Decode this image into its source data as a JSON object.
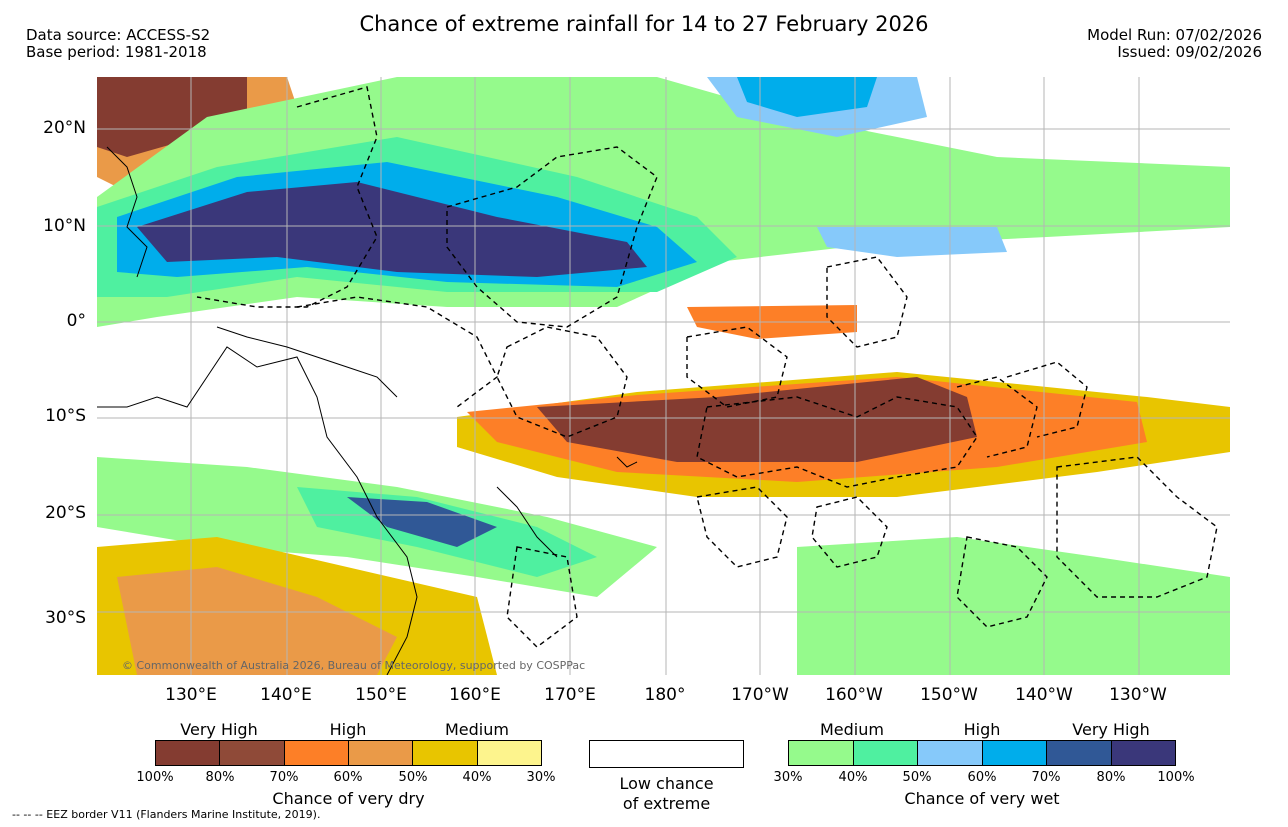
{
  "header": {
    "title": "Chance of extreme rainfall for 14 to 27 February 2026",
    "data_source": "Data source: ACCESS-S2",
    "base_period": "Base period: 1981-2018",
    "model_run": "Model Run: 07/02/2026",
    "issued": "Issued: 09/02/2026"
  },
  "map": {
    "lat_labels": [
      "20°N",
      "10°N",
      "0°",
      "10°S",
      "20°S",
      "30°S"
    ],
    "lon_labels": [
      "130°E",
      "140°E",
      "150°E",
      "160°E",
      "170°E",
      "180°",
      "170°W",
      "160°W",
      "150°W",
      "140°W",
      "130°W"
    ],
    "copyright": "© Commonwealth of Australia 2026, Bureau of Meteorology, supported by COSPPac"
  },
  "legend_dry": {
    "title": "Chance of very dry",
    "bands": [
      "Very High",
      "High",
      "Medium"
    ],
    "ticks": [
      "100%",
      "80%",
      "70%",
      "60%",
      "50%",
      "40%",
      "30%"
    ],
    "colors": [
      "#843c31",
      "#8f4a38",
      "#fd7f27",
      "#ea9a48",
      "#e8c500",
      "#fdf48d"
    ]
  },
  "legend_low": {
    "line1": "Low chance",
    "line2": "of extreme"
  },
  "legend_wet": {
    "title": "Chance of very wet",
    "bands": [
      "Medium",
      "High",
      "Very High"
    ],
    "ticks": [
      "30%",
      "40%",
      "50%",
      "60%",
      "70%",
      "80%",
      "100%"
    ],
    "colors": [
      "#95fa8c",
      "#4ff0a0",
      "#86c9fa",
      "#00adeb",
      "#305896",
      "#3a377a"
    ]
  },
  "footer": "--  --  -- EEZ border V11 (Flanders Marine Institute, 2019)."
}
